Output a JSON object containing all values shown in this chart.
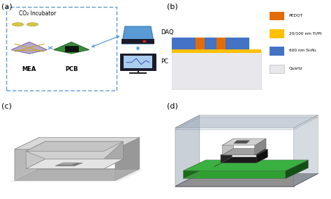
{
  "panel_labels": [
    "(a)",
    "(b)",
    "(c)",
    "(d)"
  ],
  "panel_label_color": "#000000",
  "panel_label_fontsize": 8,
  "background_color": "#ffffff",
  "panel_b": {
    "quartz_color": "#e8e8ec",
    "si3n4_color": "#4472c4",
    "tipt_color": "#ffc000",
    "pedot_color": "#e36c09",
    "legend_items": [
      {
        "label": "PEDOT",
        "color": "#e36c09"
      },
      {
        "label": "20/100 nm Ti/Pt",
        "color": "#ffc000"
      },
      {
        "label": "600 nm Si₃N₄",
        "color": "#4472c4"
      },
      {
        "label": "Quartz",
        "color": "#e8e8ec"
      }
    ]
  },
  "panel_a": {
    "box_color": "#5b9bd5",
    "title": "CO₂ Incubator",
    "mea_label": "MEA",
    "pcb_label": "PCB",
    "daq_label": "DAQ",
    "pc_label": "PC",
    "arrow_color": "#5b9bd5"
  }
}
